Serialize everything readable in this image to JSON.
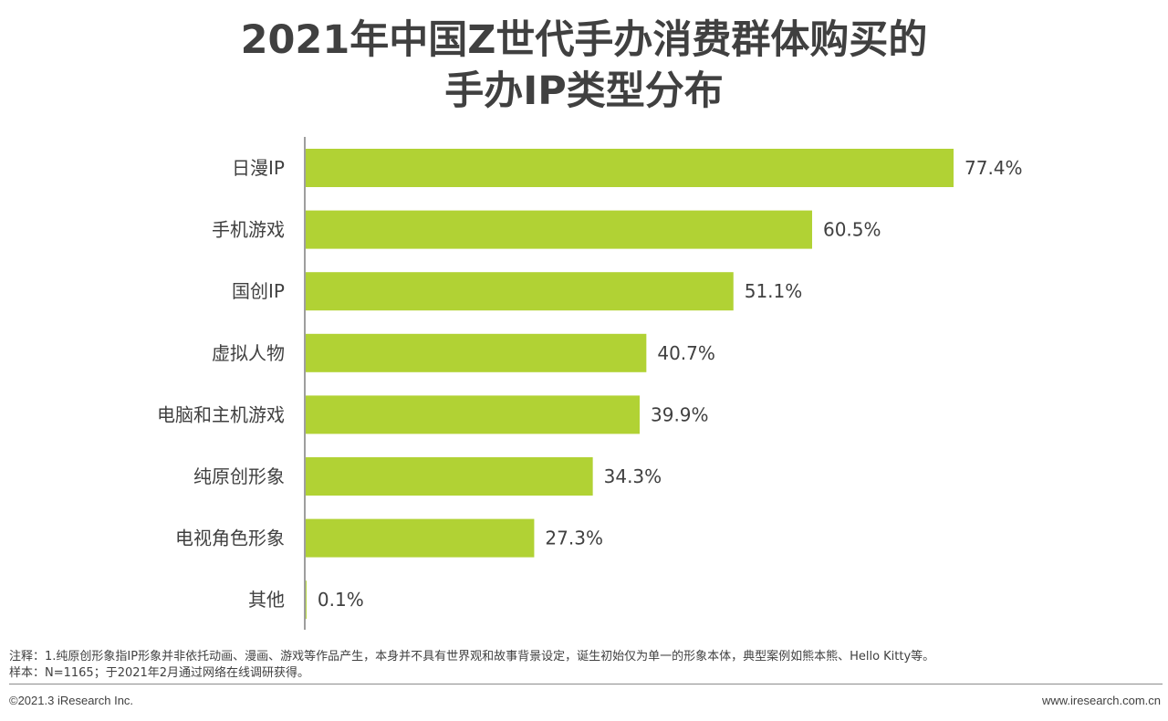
{
  "chart_data": {
    "type": "bar",
    "orientation": "horizontal",
    "title": [
      "2021年中国Z世代手办消费群体购买的",
      "手办IP类型分布"
    ],
    "categories": [
      "日漫IP",
      "手机游戏",
      "国创IP",
      "虚拟人物",
      "电脑和主机游戏",
      "纯原创形象",
      "电视角色形象",
      "其他"
    ],
    "values": [
      77.4,
      60.5,
      51.1,
      40.7,
      39.9,
      34.3,
      27.3,
      0.1
    ],
    "value_labels": [
      "77.4%",
      "60.5%",
      "51.1%",
      "40.7%",
      "39.9%",
      "34.3%",
      "27.3%",
      "0.1%"
    ],
    "unit": "%",
    "xlim": [
      0,
      100
    ],
    "grid": false,
    "bar_color": "#b1d234",
    "axis_color": "#7f7f7f"
  },
  "notes": {
    "note1": "注释：1.纯原创形象指IP形象并非依托动画、漫画、游戏等作品产生，本身并不具有世界观和故事背景设定，诞生初始仅为单一的形象本体，典型案例如熊本熊、Hello Kitty等。",
    "sample": "样本：N=1165；于2021年2月通过网络在线调研获得。"
  },
  "footer": {
    "copyright": "©2021.3 iResearch Inc.",
    "website": "www.iresearch.com.cn"
  }
}
